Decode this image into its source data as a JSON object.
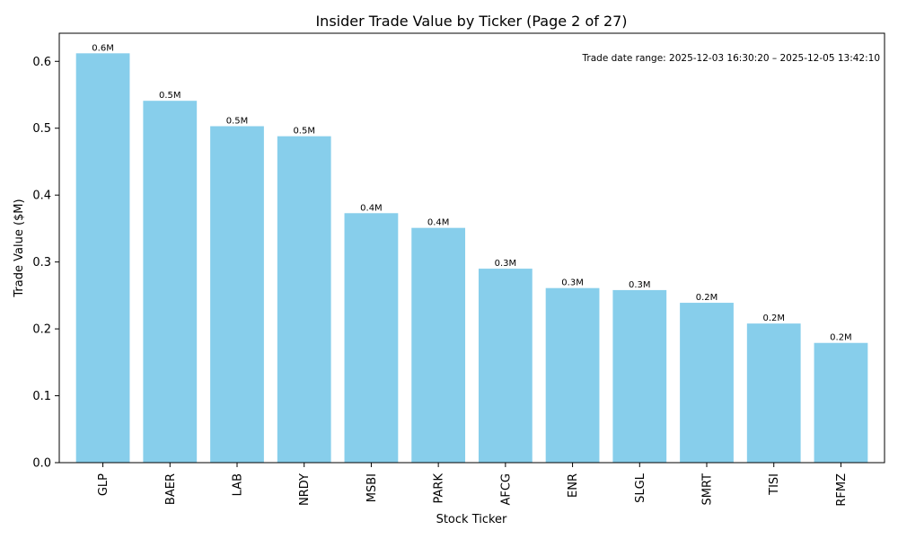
{
  "chart_data": {
    "type": "bar",
    "title": "Insider Trade Value by Ticker (Page 2 of 27)",
    "xlabel": "Stock Ticker",
    "ylabel": "Trade Value ($M)",
    "ylim": [
      0,
      0.642
    ],
    "yticks": [
      0.0,
      0.1,
      0.2,
      0.3,
      0.4,
      0.5,
      0.6
    ],
    "ytick_labels": [
      "0.0",
      "0.1",
      "0.2",
      "0.3",
      "0.4",
      "0.5",
      "0.6"
    ],
    "grid": false,
    "bar_color": "#87ceeb",
    "categories": [
      "GLP",
      "BAER",
      "LAB",
      "NRDY",
      "MSBI",
      "PARK",
      "AFCG",
      "ENR",
      "SLGL",
      "SMRT",
      "TISI",
      "RFMZ"
    ],
    "values": [
      0.612,
      0.541,
      0.503,
      0.488,
      0.373,
      0.351,
      0.29,
      0.261,
      0.258,
      0.239,
      0.208,
      0.179
    ],
    "data_labels": [
      "0.6M",
      "0.5M",
      "0.5M",
      "0.5M",
      "0.4M",
      "0.4M",
      "0.3M",
      "0.3M",
      "0.3M",
      "0.2M",
      "0.2M",
      "0.2M"
    ],
    "annotation": "Trade date range: 2025-12-03 16:30:20 – 2025-12-05 13:42:10"
  }
}
